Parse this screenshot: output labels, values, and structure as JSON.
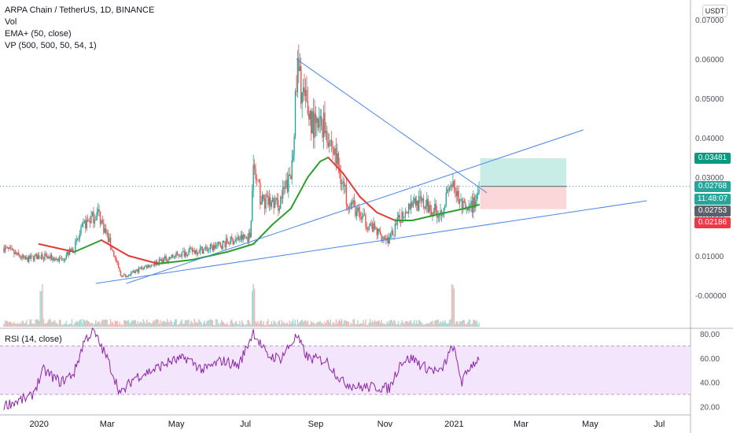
{
  "legend": {
    "title": "ARPA Chain / TetherUS, 1D, BINANCE",
    "vol": "Vol",
    "ema": "EMA+ (50, close)",
    "vp": "VP (500, 500, 50, 54, 1)",
    "rsi": "RSI (14, close)"
  },
  "currency_badge": "USDT",
  "price_tags": [
    {
      "label": "0.03481",
      "color": "#089981"
    },
    {
      "label": "0.02768",
      "color": "#26a69a"
    },
    {
      "label": "11:48:07",
      "color": "#26a69a"
    },
    {
      "label": "0.02753",
      "color": "#5d606b"
    },
    {
      "label": "0.02186",
      "color": "#f23645"
    }
  ],
  "colors": {
    "up": "#26a69a",
    "down": "#ef5350",
    "ema_up": "#2e9e2e",
    "ema_down": "#e53935",
    "trendline": "#4a86e8",
    "rsi_line": "#8e24aa",
    "rsi_band": "#f3e5fb",
    "profit_zone": "#c8ece6",
    "loss_zone": "#fbd7d9"
  },
  "chart_data": [
    {
      "type": "candlestick",
      "title": "ARPA Chain / TetherUS, 1D, BINANCE",
      "x_ticks": [
        "2020",
        "Mar",
        "May",
        "Jul",
        "Sep",
        "Nov",
        "2021",
        "Mar",
        "May",
        "Jul"
      ],
      "y_ticks": [
        "0.07000",
        "0.06000",
        "0.05000",
        "0.04000",
        "0.03000",
        "0.02000",
        "0.01000",
        "-0.00000"
      ],
      "ylim": [
        -0.002,
        0.073
      ],
      "price_path": [
        [
          "2019-12-01",
          0.012
        ],
        [
          "2019-12-20",
          0.009
        ],
        [
          "2020-01-01",
          0.01
        ],
        [
          "2020-01-20",
          0.009
        ],
        [
          "2020-02-01",
          0.012
        ],
        [
          "2020-02-10",
          0.018
        ],
        [
          "2020-02-22",
          0.021
        ],
        [
          "2020-03-05",
          0.012
        ],
        [
          "2020-03-13",
          0.005
        ],
        [
          "2020-03-20",
          0.005
        ],
        [
          "2020-04-01",
          0.007
        ],
        [
          "2020-04-20",
          0.009
        ],
        [
          "2020-05-10",
          0.011
        ],
        [
          "2020-06-01",
          0.012
        ],
        [
          "2020-06-20",
          0.014
        ],
        [
          "2020-07-05",
          0.015
        ],
        [
          "2020-07-08",
          0.032
        ],
        [
          "2020-07-15",
          0.024
        ],
        [
          "2020-07-30",
          0.023
        ],
        [
          "2020-08-10",
          0.03
        ],
        [
          "2020-08-16",
          0.057
        ],
        [
          "2020-08-22",
          0.049
        ],
        [
          "2020-09-01",
          0.042
        ],
        [
          "2020-09-08",
          0.044
        ],
        [
          "2020-09-20",
          0.034
        ],
        [
          "2020-09-28",
          0.025
        ],
        [
          "2020-10-10",
          0.02
        ],
        [
          "2020-10-25",
          0.016
        ],
        [
          "2020-11-05",
          0.014
        ],
        [
          "2020-11-15",
          0.02
        ],
        [
          "2020-11-25",
          0.024
        ],
        [
          "2020-12-05",
          0.023
        ],
        [
          "2020-12-20",
          0.021
        ],
        [
          "2020-12-31",
          0.029
        ],
        [
          "2021-01-05",
          0.024
        ],
        [
          "2021-01-12",
          0.021
        ],
        [
          "2021-01-18",
          0.023
        ],
        [
          "2021-01-23",
          0.027
        ]
      ],
      "ema": [
        [
          "2020-01-01",
          0.013
        ],
        [
          "2020-02-01",
          0.011
        ],
        [
          "2020-02-25",
          0.014
        ],
        [
          "2020-03-20",
          0.01
        ],
        [
          "2020-04-15",
          0.008
        ],
        [
          "2020-05-15",
          0.009
        ],
        [
          "2020-06-15",
          0.011
        ],
        [
          "2020-07-08",
          0.013
        ],
        [
          "2020-07-25",
          0.018
        ],
        [
          "2020-08-10",
          0.022
        ],
        [
          "2020-08-25",
          0.03
        ],
        [
          "2020-09-05",
          0.034
        ],
        [
          "2020-09-12",
          0.035
        ],
        [
          "2020-09-25",
          0.031
        ],
        [
          "2020-10-10",
          0.025
        ],
        [
          "2020-10-25",
          0.021
        ],
        [
          "2020-11-10",
          0.019
        ],
        [
          "2020-11-25",
          0.019
        ],
        [
          "2020-12-10",
          0.02
        ],
        [
          "2020-12-25",
          0.021
        ],
        [
          "2021-01-10",
          0.022
        ],
        [
          "2021-01-23",
          0.023
        ]
      ],
      "trendlines": [
        {
          "from": [
            "2020-08-15",
            0.06
          ],
          "to": [
            "2021-01-30",
            0.026
          ]
        },
        {
          "from": [
            "2020-03-18",
            0.003
          ],
          "to": [
            "2021-04-25",
            0.042
          ]
        },
        {
          "from": [
            "2020-02-20",
            0.003
          ],
          "to": [
            "2021-06-20",
            0.024
          ]
        }
      ],
      "position": {
        "entry": 0.02768,
        "target": 0.03481,
        "stop": 0.02186,
        "start": "2021-01-24",
        "end": "2021-04-10"
      }
    },
    {
      "type": "line",
      "name": "RSI (14, close)",
      "y_ticks": [
        "80.00",
        "60.00",
        "40.00",
        "20.00"
      ],
      "ylim": [
        17,
        84
      ],
      "band": [
        30,
        70
      ],
      "rsi_path": [
        [
          "2019-12-01",
          21
        ],
        [
          "2019-12-25",
          28
        ],
        [
          "2020-01-05",
          50
        ],
        [
          "2020-01-20",
          40
        ],
        [
          "2020-02-01",
          48
        ],
        [
          "2020-02-10",
          75
        ],
        [
          "2020-02-18",
          82
        ],
        [
          "2020-03-01",
          60
        ],
        [
          "2020-03-13",
          30
        ],
        [
          "2020-03-25",
          44
        ],
        [
          "2020-04-10",
          50
        ],
        [
          "2020-04-25",
          57
        ],
        [
          "2020-05-10",
          60
        ],
        [
          "2020-05-25",
          50
        ],
        [
          "2020-06-10",
          58
        ],
        [
          "2020-06-25",
          54
        ],
        [
          "2020-07-08",
          82
        ],
        [
          "2020-07-20",
          62
        ],
        [
          "2020-08-01",
          60
        ],
        [
          "2020-08-15",
          78
        ],
        [
          "2020-08-25",
          60
        ],
        [
          "2020-09-10",
          58
        ],
        [
          "2020-09-25",
          40
        ],
        [
          "2020-10-10",
          36
        ],
        [
          "2020-10-25",
          36
        ],
        [
          "2020-11-05",
          35
        ],
        [
          "2020-11-15",
          57
        ],
        [
          "2020-11-25",
          60
        ],
        [
          "2020-12-05",
          53
        ],
        [
          "2020-12-20",
          48
        ],
        [
          "2020-12-31",
          70
        ],
        [
          "2021-01-08",
          40
        ],
        [
          "2021-01-15",
          53
        ],
        [
          "2021-01-23",
          60
        ]
      ]
    }
  ],
  "volume_data": {
    "note_spikes": [
      [
        "2020-01-03",
        0.8
      ],
      [
        "2020-07-08",
        1.0
      ],
      [
        "2020-12-31",
        0.6
      ]
    ]
  }
}
